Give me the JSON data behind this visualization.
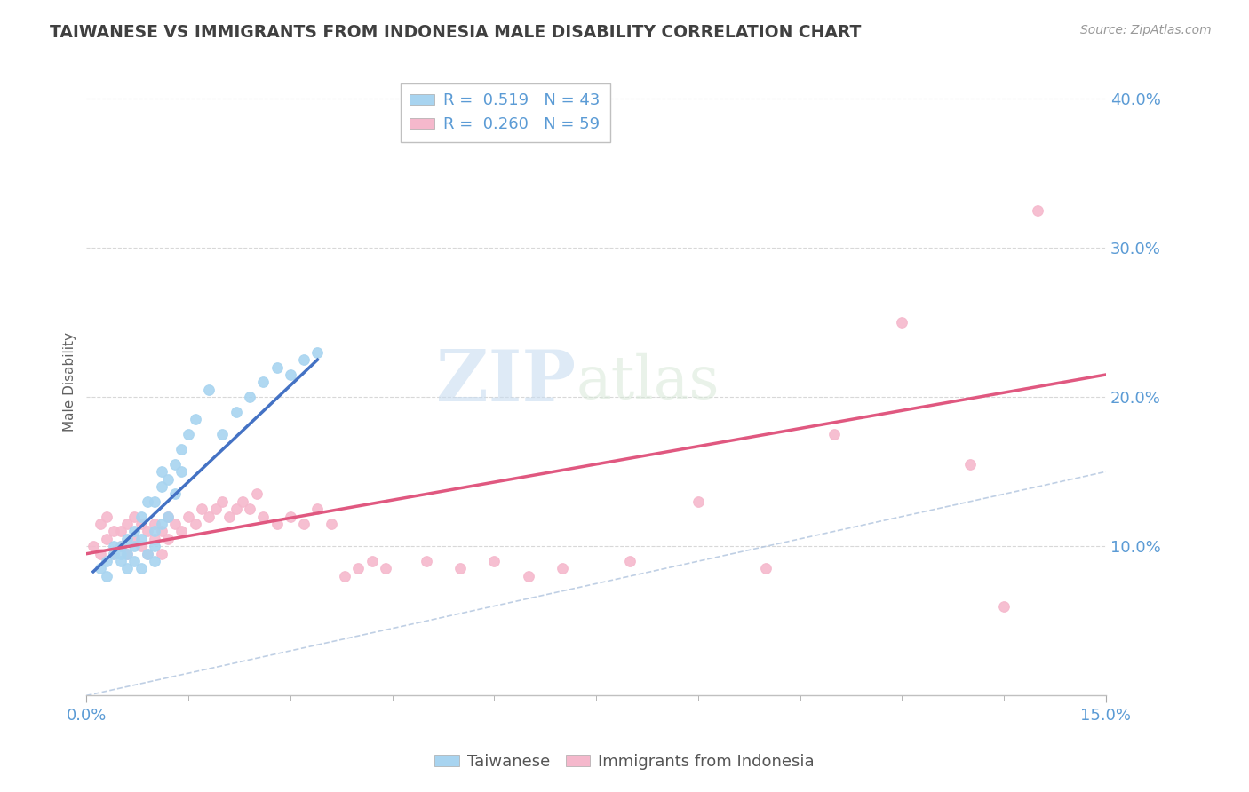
{
  "title": "TAIWANESE VS IMMIGRANTS FROM INDONESIA MALE DISABILITY CORRELATION CHART",
  "source": "Source: ZipAtlas.com",
  "ylabel": "Male Disability",
  "xlim": [
    0.0,
    0.15
  ],
  "ylim": [
    0.0,
    0.42
  ],
  "color_taiwanese": "#a8d4f0",
  "color_indonesia": "#f5b8cc",
  "color_line_taiwanese": "#4472c4",
  "color_line_indonesia": "#e05880",
  "color_diag": "#b0c4de",
  "color_title": "#404040",
  "color_labels": "#5b9bd5",
  "background_color": "#ffffff",
  "watermark_zip": "ZIP",
  "watermark_atlas": "atlas",
  "tw_x": [
    0.002,
    0.003,
    0.003,
    0.004,
    0.004,
    0.005,
    0.005,
    0.005,
    0.006,
    0.006,
    0.006,
    0.007,
    0.007,
    0.007,
    0.008,
    0.008,
    0.008,
    0.009,
    0.009,
    0.01,
    0.01,
    0.01,
    0.01,
    0.011,
    0.011,
    0.011,
    0.012,
    0.012,
    0.013,
    0.013,
    0.014,
    0.014,
    0.015,
    0.016,
    0.018,
    0.02,
    0.022,
    0.024,
    0.026,
    0.028,
    0.03,
    0.032,
    0.034
  ],
  "tw_y": [
    0.085,
    0.09,
    0.08,
    0.095,
    0.1,
    0.09,
    0.095,
    0.1,
    0.085,
    0.105,
    0.095,
    0.1,
    0.11,
    0.09,
    0.085,
    0.105,
    0.12,
    0.095,
    0.13,
    0.1,
    0.11,
    0.09,
    0.13,
    0.15,
    0.115,
    0.14,
    0.12,
    0.145,
    0.135,
    0.155,
    0.15,
    0.165,
    0.175,
    0.185,
    0.205,
    0.175,
    0.19,
    0.2,
    0.21,
    0.22,
    0.215,
    0.225,
    0.23
  ],
  "id_x": [
    0.001,
    0.002,
    0.002,
    0.003,
    0.003,
    0.004,
    0.004,
    0.005,
    0.005,
    0.006,
    0.006,
    0.007,
    0.007,
    0.008,
    0.008,
    0.009,
    0.009,
    0.01,
    0.01,
    0.011,
    0.011,
    0.012,
    0.012,
    0.013,
    0.014,
    0.015,
    0.016,
    0.017,
    0.018,
    0.019,
    0.02,
    0.021,
    0.022,
    0.023,
    0.024,
    0.025,
    0.026,
    0.028,
    0.03,
    0.032,
    0.034,
    0.036,
    0.038,
    0.04,
    0.042,
    0.044,
    0.05,
    0.055,
    0.06,
    0.065,
    0.07,
    0.08,
    0.09,
    0.1,
    0.11,
    0.12,
    0.13,
    0.135,
    0.14
  ],
  "id_y": [
    0.1,
    0.115,
    0.095,
    0.12,
    0.105,
    0.11,
    0.095,
    0.11,
    0.1,
    0.115,
    0.095,
    0.12,
    0.105,
    0.115,
    0.1,
    0.11,
    0.095,
    0.115,
    0.105,
    0.11,
    0.095,
    0.12,
    0.105,
    0.115,
    0.11,
    0.12,
    0.115,
    0.125,
    0.12,
    0.125,
    0.13,
    0.12,
    0.125,
    0.13,
    0.125,
    0.135,
    0.12,
    0.115,
    0.12,
    0.115,
    0.125,
    0.115,
    0.08,
    0.085,
    0.09,
    0.085,
    0.09,
    0.085,
    0.09,
    0.08,
    0.085,
    0.09,
    0.13,
    0.085,
    0.175,
    0.25,
    0.155,
    0.06,
    0.325
  ],
  "tw_line_x": [
    0.001,
    0.034
  ],
  "tw_line_y": [
    0.083,
    0.225
  ],
  "id_line_x": [
    0.0,
    0.15
  ],
  "id_line_y": [
    0.095,
    0.215
  ]
}
